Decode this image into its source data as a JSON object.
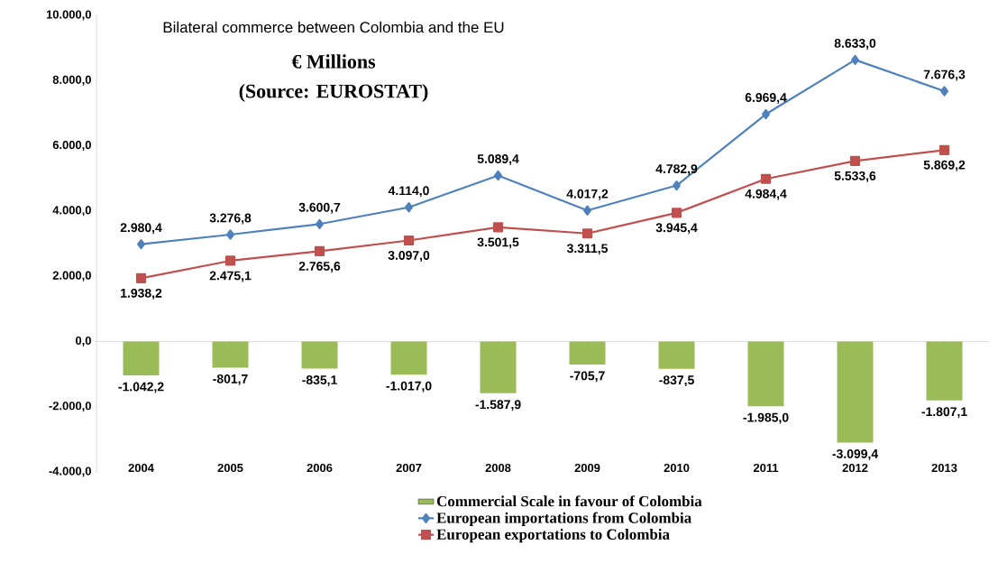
{
  "chart_data": {
    "type": "line",
    "title": "Bilateral commerce between Colombia and the EU",
    "subtitle": "€ Millions",
    "annotations": [
      "(Source: EUROSTAT)"
    ],
    "categories": [
      "2004",
      "2005",
      "2006",
      "2007",
      "2008",
      "2009",
      "2010",
      "2011",
      "2012",
      "2013"
    ],
    "series": [
      {
        "name": "Commercial Scale in favour of Colombia",
        "type": "bar",
        "color": "#9bbb59",
        "values": [
          -1042.2,
          -801.7,
          -835.1,
          -1017.0,
          -1587.9,
          -705.7,
          -837.5,
          -1985.0,
          -3099.4,
          -1807.1
        ],
        "value_labels": [
          "-1.042,2",
          "-801,7",
          "-835,1",
          "-1.017,0",
          "-1.587,9",
          "-705,7",
          "-837,5",
          "-1.985,0",
          "-3.099,4",
          "-1.807,1"
        ]
      },
      {
        "name": "European importations from Colombia",
        "color": "#4f81bd",
        "marker": "diamond",
        "values": [
          2980.4,
          3276.8,
          3600.7,
          4114.0,
          5089.4,
          4017.2,
          4782.9,
          6969.4,
          8633.0,
          7676.3
        ],
        "value_labels": [
          "2.980,4",
          "3.276,8",
          "3.600,7",
          "4.114,0",
          "5.089,4",
          "4.017,2",
          "4.782,9",
          "6.969,4",
          "8.633,0",
          "7.676,3"
        ]
      },
      {
        "name": "European exportations to Colombia",
        "color": "#c0504d",
        "marker": "square",
        "values": [
          1938.2,
          2475.1,
          2765.6,
          3097.0,
          3501.5,
          3311.5,
          3945.4,
          4984.4,
          5533.6,
          5869.2
        ],
        "value_labels": [
          "1.938,2",
          "2.475,1",
          "2.765,6",
          "3.097,0",
          "3.501,5",
          "3.311,5",
          "3.945,4",
          "4.984,4",
          "5.533,6",
          "5.869,2"
        ]
      }
    ],
    "ylim": [
      -4000,
      10000
    ],
    "yticks": [
      {
        "value": -4000,
        "label": "-4.000,0"
      },
      {
        "value": -2000,
        "label": "-2.000,0"
      },
      {
        "value": 0,
        "label": "0,0"
      },
      {
        "value": 2000,
        "label": "2.000,0"
      },
      {
        "value": 4000,
        "label": "4.000,0"
      },
      {
        "value": 6000,
        "label": "6.000,0"
      },
      {
        "value": 8000,
        "label": "8.000,0"
      },
      {
        "value": 10000,
        "label": "10.000,0"
      }
    ],
    "legend": "bottom"
  }
}
